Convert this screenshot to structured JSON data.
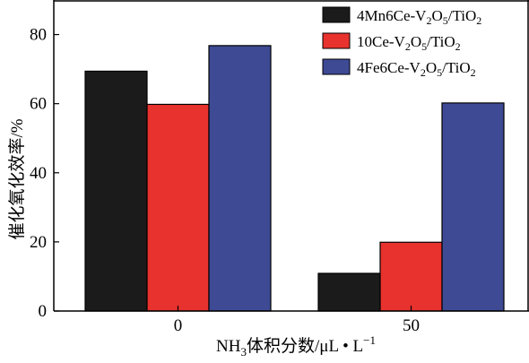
{
  "chart_data": {
    "type": "bar",
    "categories": [
      "0",
      "50"
    ],
    "series": [
      {
        "name": "4Mn6Ce-V2O5/TiO2",
        "values": [
          69.4,
          10.9
        ],
        "color": "#1b1b1b"
      },
      {
        "name": "10Ce-V2O5/TiO2",
        "values": [
          59.8,
          19.9
        ],
        "color": "#e8322e"
      },
      {
        "name": "4Fe6Ce-V2O5/TiO2",
        "values": [
          76.8,
          60.2
        ],
        "color": "#3e4a94"
      }
    ],
    "xlabel": "NH3体积分数/μL·L-1",
    "ylabel": "催化氧化效率/%",
    "ylim": [
      0,
      90
    ],
    "yticks": [
      0,
      20,
      40,
      60,
      80
    ],
    "grid": false,
    "legend_position": "top-right"
  },
  "axis_text": {
    "x_prefix": "NH",
    "x_sub": "3",
    "x_middle": "体积分数/μL • L",
    "x_sup": "−1",
    "y_title": "催化氧化效率/%"
  },
  "legend_text": [
    {
      "a": "4Mn6Ce-V",
      "b": "2",
      "c": "O",
      "d": "5",
      "e": "/TiO",
      "f": "2"
    },
    {
      "a": "10Ce-V",
      "b": "2",
      "c": "O",
      "d": "5",
      "e": "/TiO",
      "f": "2"
    },
    {
      "a": "4Fe6Ce-V",
      "b": "2",
      "c": "O",
      "d": "5",
      "e": "/TiO",
      "f": "2"
    }
  ]
}
